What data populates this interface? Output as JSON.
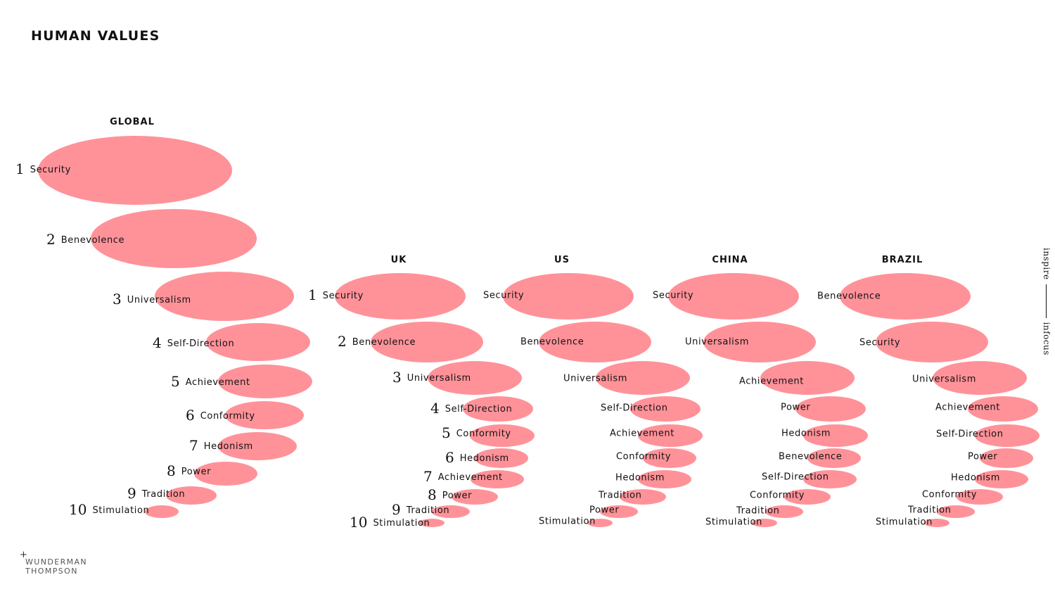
{
  "header": {
    "title": "HUMAN VALUES"
  },
  "side_text": {
    "left": "inspire",
    "right": "infocus"
  },
  "brand": {
    "line1": "WUNDERMAN",
    "line2": "THOMPSON"
  },
  "groups": [
    {
      "title": "GLOBAL",
      "ranked": true,
      "items": [
        {
          "rank": "1",
          "label": "Security"
        },
        {
          "rank": "2",
          "label": "Benevolence"
        },
        {
          "rank": "3",
          "label": "Universalism"
        },
        {
          "rank": "4",
          "label": "Self-Direction"
        },
        {
          "rank": "5",
          "label": "Achievement"
        },
        {
          "rank": "6",
          "label": "Conformity"
        },
        {
          "rank": "7",
          "label": "Hedonism"
        },
        {
          "rank": "8",
          "label": "Power"
        },
        {
          "rank": "9",
          "label": "Tradition"
        },
        {
          "rank": "10",
          "label": "Stimulation"
        }
      ]
    },
    {
      "title": "UK",
      "ranked": true,
      "items": [
        {
          "rank": "1",
          "label": "Security"
        },
        {
          "rank": "2",
          "label": "Benevolence"
        },
        {
          "rank": "3",
          "label": "Universalism"
        },
        {
          "rank": "4",
          "label": "Self-Direction"
        },
        {
          "rank": "5",
          "label": "Conformity"
        },
        {
          "rank": "6",
          "label": "Hedonism"
        },
        {
          "rank": "7",
          "label": "Achievement"
        },
        {
          "rank": "8",
          "label": "Power"
        },
        {
          "rank": "9",
          "label": "Tradition"
        },
        {
          "rank": "10",
          "label": "Stimulation"
        }
      ]
    },
    {
      "title": "US",
      "ranked": false,
      "items": [
        {
          "label": "Security"
        },
        {
          "label": "Benevolence"
        },
        {
          "label": "Universalism"
        },
        {
          "label": "Self-Direction"
        },
        {
          "label": "Achievement"
        },
        {
          "label": "Conformity"
        },
        {
          "label": "Hedonism"
        },
        {
          "label": "Tradition"
        },
        {
          "label": "Power"
        },
        {
          "label": "Stimulation"
        }
      ]
    },
    {
      "title": "CHINA",
      "ranked": false,
      "items": [
        {
          "label": "Security"
        },
        {
          "label": "Universalism"
        },
        {
          "label": "Achievement"
        },
        {
          "label": "Power"
        },
        {
          "label": "Hedonism"
        },
        {
          "label": "Benevolence"
        },
        {
          "label": "Self-Direction"
        },
        {
          "label": "Conformity"
        },
        {
          "label": "Tradition"
        },
        {
          "label": "Stimulation"
        }
      ]
    },
    {
      "title": "BRAZIL",
      "ranked": false,
      "items": [
        {
          "label": "Benevolence"
        },
        {
          "label": "Security"
        },
        {
          "label": "Universalism"
        },
        {
          "label": "Achievement"
        },
        {
          "label": "Self-Direction"
        },
        {
          "label": "Power"
        },
        {
          "label": "Hedonism"
        },
        {
          "label": "Conformity"
        },
        {
          "label": "Tradition"
        },
        {
          "label": "Stimulation"
        }
      ]
    }
  ]
}
